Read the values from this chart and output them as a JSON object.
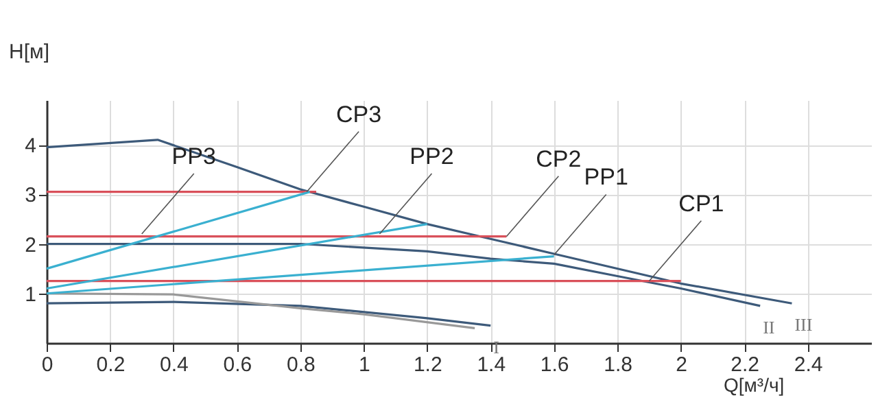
{
  "chart_data": {
    "type": "line",
    "xlabel": "Q[м³/ч]",
    "ylabel": "H[м]",
    "xlim": [
      0,
      2.6
    ],
    "ylim": [
      0,
      4.9
    ],
    "xticks": [
      0,
      0.2,
      0.4,
      0.6,
      0.8,
      1,
      1.2,
      1.4,
      1.6,
      1.8,
      2,
      2.2,
      2.4
    ],
    "yticks": [
      1,
      2,
      3,
      4
    ],
    "grid": true,
    "marker": "none",
    "line_style": "solid",
    "series": [
      {
        "name": "III",
        "color": "#3d5a7a",
        "x": [
          0,
          0.35,
          0.6,
          0.8,
          1.0,
          1.2,
          1.4,
          1.6,
          2.0,
          2.35
        ],
        "values": [
          3.95,
          4.1,
          3.55,
          3.1,
          2.75,
          2.4,
          2.1,
          1.8,
          1.2,
          0.8
        ]
      },
      {
        "name": "II",
        "color": "#3d5a7a",
        "x": [
          0,
          0.8,
          1.2,
          1.4,
          1.6,
          1.8,
          2.0,
          2.25
        ],
        "values": [
          2.0,
          2.0,
          1.85,
          1.7,
          1.6,
          1.35,
          1.1,
          0.75
        ]
      },
      {
        "name": "I",
        "color": "#3d5a7a",
        "x": [
          0,
          0.4,
          0.8,
          1.2,
          1.4
        ],
        "values": [
          0.8,
          0.83,
          0.75,
          0.5,
          0.35
        ]
      },
      {
        "color": "#999999",
        "x": [
          0,
          0.4,
          0.8,
          1.0,
          1.35
        ],
        "values": [
          1.0,
          0.98,
          0.7,
          0.58,
          0.3
        ]
      },
      {
        "color": "#d9505a",
        "x": [
          0,
          0.85
        ],
        "values": [
          3.05,
          3.05
        ]
      },
      {
        "color": "#d9505a",
        "x": [
          0,
          1.45
        ],
        "values": [
          2.15,
          2.15
        ]
      },
      {
        "color": "#d9505a",
        "x": [
          0,
          2.0
        ],
        "values": [
          1.25,
          1.25
        ]
      },
      {
        "color": "#3ab0d0",
        "x": [
          0,
          0.83
        ],
        "values": [
          1.5,
          3.05
        ]
      },
      {
        "color": "#3ab0d0",
        "x": [
          0,
          1.2
        ],
        "values": [
          1.1,
          2.4
        ]
      },
      {
        "color": "#3ab0d0",
        "x": [
          0,
          1.6
        ],
        "values": [
          1.0,
          1.75
        ]
      }
    ],
    "annotations": [
      {
        "text": "PP3",
        "x": 0.3,
        "y": 2.2
      },
      {
        "text": "CP3",
        "x": 0.82,
        "y": 3.05
      },
      {
        "text": "PP2",
        "x": 1.05,
        "y": 2.2
      },
      {
        "text": "CP2",
        "x": 1.45,
        "y": 2.15
      },
      {
        "text": "PP1",
        "x": 1.6,
        "y": 1.78
      },
      {
        "text": "CP1",
        "x": 1.9,
        "y": 1.25
      }
    ]
  }
}
